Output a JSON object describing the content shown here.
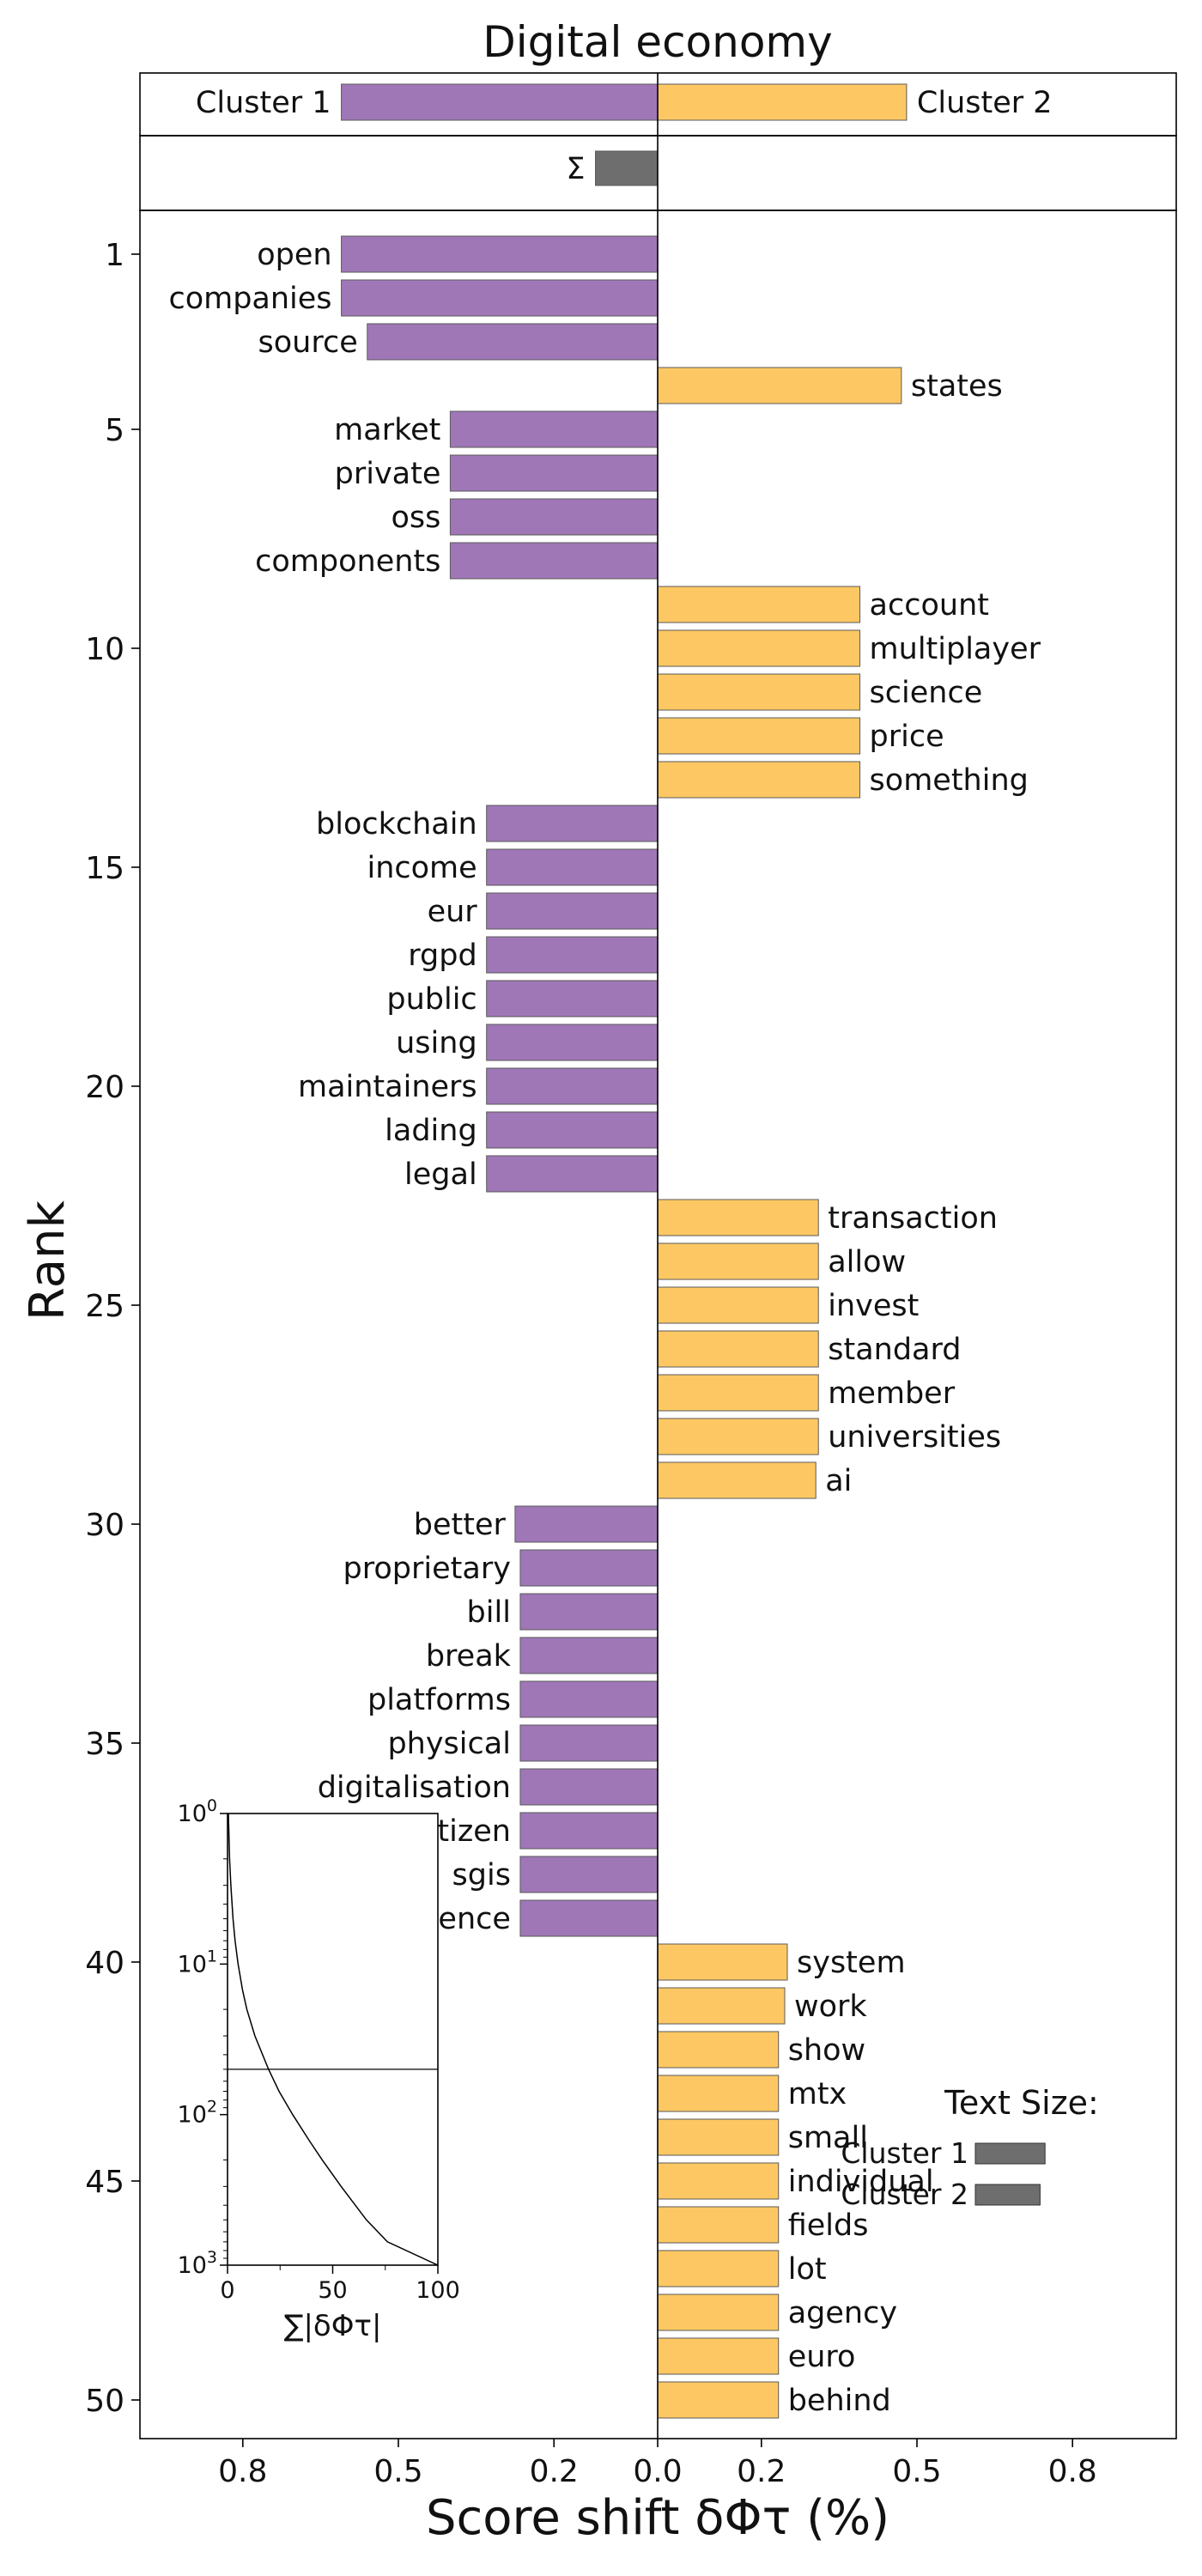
{
  "chart_data": {
    "type": "bar",
    "orientation": "horizontal",
    "title": "Digital economy",
    "xlabel": "Score shift δΦτ (%)",
    "ylabel": "Rank",
    "xlim": [
      -1.0,
      1.0
    ],
    "ylim": [
      0.5,
      50.5
    ],
    "x_ticks": [
      -0.8,
      -0.5,
      -0.2,
      0.0,
      0.2,
      0.5,
      0.8
    ],
    "x_tick_labels": [
      "0.8",
      "0.5",
      "0.2",
      "0.0",
      "0.2",
      "0.5",
      "0.8"
    ],
    "y_ticks": [
      1,
      5,
      10,
      15,
      20,
      25,
      30,
      35,
      40,
      45,
      50
    ],
    "y_tick_labels": [
      "1",
      "5",
      "10",
      "15",
      "20",
      "25",
      "30",
      "35",
      "40",
      "45",
      "50"
    ],
    "colors": {
      "cluster1": "#9f77b7",
      "cluster2": "#fdc863",
      "sum": "#6e6e6e",
      "edge": "#5a5a5a"
    },
    "totals": [
      {
        "label": "Cluster 1",
        "value": -0.61
      },
      {
        "label": "Cluster 2",
        "value": 0.48
      }
    ],
    "sum_bar": {
      "label": "Σ",
      "value": -0.12
    },
    "words": [
      {
        "rank": 1,
        "word": "open",
        "value": -0.61
      },
      {
        "rank": 2,
        "word": "companies",
        "value": -0.61
      },
      {
        "rank": 3,
        "word": "source",
        "value": -0.56
      },
      {
        "rank": 4,
        "word": "states",
        "value": 0.47
      },
      {
        "rank": 5,
        "word": "market",
        "value": -0.4
      },
      {
        "rank": 6,
        "word": "private",
        "value": -0.4
      },
      {
        "rank": 7,
        "word": "oss",
        "value": -0.4
      },
      {
        "rank": 8,
        "word": "components",
        "value": -0.4
      },
      {
        "rank": 9,
        "word": "account",
        "value": 0.39
      },
      {
        "rank": 10,
        "word": "multiplayer",
        "value": 0.39
      },
      {
        "rank": 11,
        "word": "science",
        "value": 0.39
      },
      {
        "rank": 12,
        "word": "price",
        "value": 0.39
      },
      {
        "rank": 13,
        "word": "something",
        "value": 0.39
      },
      {
        "rank": 14,
        "word": "blockchain",
        "value": -0.33
      },
      {
        "rank": 15,
        "word": "income",
        "value": -0.33
      },
      {
        "rank": 16,
        "word": "eur",
        "value": -0.33
      },
      {
        "rank": 17,
        "word": "rgpd",
        "value": -0.33
      },
      {
        "rank": 18,
        "word": "public",
        "value": -0.33
      },
      {
        "rank": 19,
        "word": "using",
        "value": -0.33
      },
      {
        "rank": 20,
        "word": "maintainers",
        "value": -0.33
      },
      {
        "rank": 21,
        "word": "lading",
        "value": -0.33
      },
      {
        "rank": 22,
        "word": "legal",
        "value": -0.33
      },
      {
        "rank": 23,
        "word": "transaction",
        "value": 0.31
      },
      {
        "rank": 24,
        "word": "allow",
        "value": 0.31
      },
      {
        "rank": 25,
        "word": "invest",
        "value": 0.31
      },
      {
        "rank": 26,
        "word": "standard",
        "value": 0.31
      },
      {
        "rank": 27,
        "word": "member",
        "value": 0.31
      },
      {
        "rank": 28,
        "word": "universities",
        "value": 0.31
      },
      {
        "rank": 29,
        "word": "ai",
        "value": 0.305
      },
      {
        "rank": 30,
        "word": "better",
        "value": -0.275
      },
      {
        "rank": 31,
        "word": "proprietary",
        "value": -0.265
      },
      {
        "rank": 32,
        "word": "bill",
        "value": -0.265
      },
      {
        "rank": 33,
        "word": "break",
        "value": -0.265
      },
      {
        "rank": 34,
        "word": "platforms",
        "value": -0.265
      },
      {
        "rank": 35,
        "word": "physical",
        "value": -0.265
      },
      {
        "rank": 36,
        "word": "digitalisation",
        "value": -0.265
      },
      {
        "rank": 37,
        "word": "citizen",
        "value": -0.265
      },
      {
        "rank": 38,
        "word": "sgis",
        "value": -0.265
      },
      {
        "rank": 39,
        "word": "resilience",
        "value": -0.265
      },
      {
        "rank": 40,
        "word": "system",
        "value": 0.25
      },
      {
        "rank": 41,
        "word": "work",
        "value": 0.245
      },
      {
        "rank": 42,
        "word": "show",
        "value": 0.233
      },
      {
        "rank": 43,
        "word": "mtx",
        "value": 0.233
      },
      {
        "rank": 44,
        "word": "small",
        "value": 0.233
      },
      {
        "rank": 45,
        "word": "individual",
        "value": 0.233
      },
      {
        "rank": 46,
        "word": "fields",
        "value": 0.233
      },
      {
        "rank": 47,
        "word": "lot",
        "value": 0.233
      },
      {
        "rank": 48,
        "word": "agency",
        "value": 0.233
      },
      {
        "rank": 49,
        "word": "euro",
        "value": 0.233
      },
      {
        "rank": 50,
        "word": "behind",
        "value": 0.233
      }
    ],
    "inset": {
      "type": "line",
      "xlabel": "∑|δΦτ|",
      "x_ticks": [
        0,
        50,
        100
      ],
      "x_tick_labels": [
        "0",
        "50",
        "100"
      ],
      "x_minor_ticks": [
        25,
        75
      ],
      "xlim": [
        0,
        100
      ],
      "y_scale": "log",
      "y_inverted": true,
      "ylim": [
        1,
        1000
      ],
      "y_ticks": [
        1,
        10,
        100,
        1000
      ],
      "reference_rank": 50,
      "curve": {
        "rank": [
          1,
          2,
          3,
          5,
          7,
          10,
          15,
          20,
          30,
          50,
          70,
          100,
          150,
          200,
          300,
          500,
          700,
          1000
        ],
        "cumulative": [
          0.4,
          1.0,
          1.6,
          2.6,
          3.6,
          5.0,
          7.2,
          9.2,
          13.0,
          19.5,
          24.5,
          31.0,
          39.0,
          45.0,
          54.0,
          66.0,
          76.0,
          100.0
        ]
      }
    },
    "legend": {
      "title": "Text Size:",
      "placement": "lower-right",
      "entries": [
        {
          "label": "Cluster 1",
          "value": 0.28
        },
        {
          "label": "Cluster 2",
          "value": 0.26
        }
      ]
    }
  }
}
